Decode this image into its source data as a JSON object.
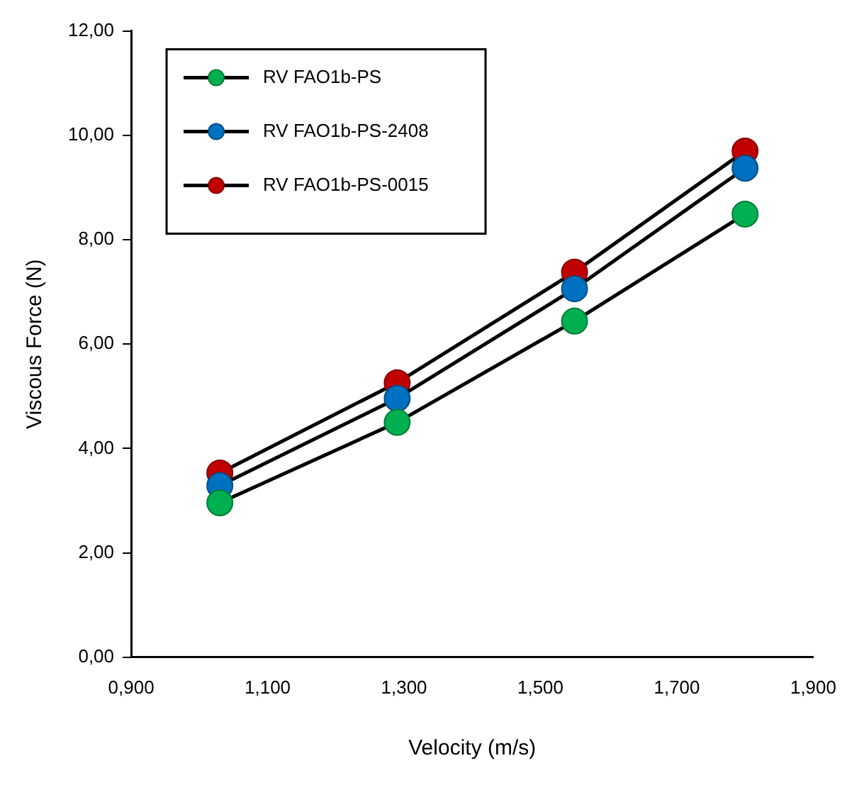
{
  "chart_data": {
    "type": "line",
    "xlabel": "Velocity (m/s)",
    "ylabel": "Viscous Force (N)",
    "x": [
      1.03,
      1.29,
      1.55,
      1.8
    ],
    "series": [
      {
        "name": "RV FAO1b-PS",
        "color": "#00b050",
        "values": [
          2.96,
          4.5,
          6.44,
          8.49
        ]
      },
      {
        "name": "RV FAO1b-PS-2408",
        "color": "#0070c0",
        "values": [
          3.29,
          4.96,
          7.06,
          9.37
        ]
      },
      {
        "name": "RV FAO1b-PS-0015",
        "color": "#c00000",
        "values": [
          3.53,
          5.26,
          7.38,
          9.7
        ]
      }
    ],
    "xlim": [
      0.9,
      1.9
    ],
    "xticks": [
      {
        "value": 0.9,
        "label": "0,900"
      },
      {
        "value": 1.1,
        "label": "1,100"
      },
      {
        "value": 1.3,
        "label": "1,300"
      },
      {
        "value": 1.5,
        "label": "1,500"
      },
      {
        "value": 1.7,
        "label": "1,700"
      },
      {
        "value": 1.9,
        "label": "1,900"
      }
    ],
    "ylim": [
      0,
      12
    ],
    "yticks": [
      {
        "value": 0,
        "label": "0,00"
      },
      {
        "value": 2,
        "label": "2,00"
      },
      {
        "value": 4,
        "label": "4,00"
      },
      {
        "value": 6,
        "label": "6,00"
      },
      {
        "value": 8,
        "label": "8,00"
      },
      {
        "value": 10,
        "label": "10,00"
      },
      {
        "value": 12,
        "label": "12,00"
      }
    ],
    "grid": false,
    "legend": "top left",
    "marker": "circle",
    "line_style": "solid"
  }
}
